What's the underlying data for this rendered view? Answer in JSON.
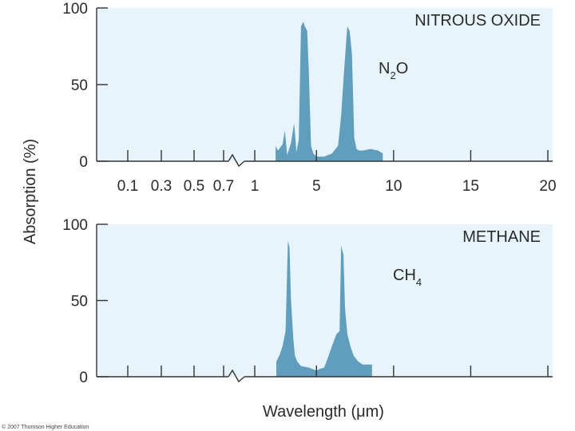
{
  "figure": {
    "ylabel": "Absorption (%)",
    "xlabel": "Wavelength (μm)",
    "copyright": "© 2007 Thomson Higher Education",
    "colors": {
      "panel_bg": "#e8f4fc",
      "fill": "#5f9fbd",
      "axis": "#333333"
    }
  },
  "chart_data": [
    {
      "type": "area",
      "title": "NITROUS OXIDE",
      "annotation": {
        "main": "N",
        "sub": "2",
        "rest": "O"
      },
      "ylim": [
        0,
        100
      ],
      "yticks": [
        0,
        50,
        100
      ],
      "xtick_labels": [
        "0.1",
        "0.3",
        "0.5",
        "0.7",
        "1",
        "5",
        "10",
        "15",
        "20"
      ],
      "x_axis_note": "broken axis between 0.7 and 1; linear scale from 1 to 20",
      "series": [
        {
          "x": [
            2.35,
            2.5,
            2.8,
            2.95,
            3.1,
            3.35,
            3.55,
            3.7,
            3.85,
            4.0,
            4.15,
            4.25,
            4.4,
            4.5,
            4.65,
            4.8,
            5.0,
            5.5,
            6.0,
            6.4,
            6.6,
            6.8,
            7.0,
            7.15,
            7.3,
            7.45,
            7.6,
            7.75,
            8.0,
            8.5,
            9.0,
            9.3,
            9.3
          ],
          "y": [
            10,
            7,
            11,
            20,
            4,
            12,
            25,
            6,
            14,
            88,
            91,
            88,
            85,
            60,
            10,
            5,
            3,
            3,
            5,
            10,
            30,
            60,
            88,
            85,
            70,
            15,
            8,
            7,
            7,
            8,
            7,
            5,
            0
          ]
        }
      ]
    },
    {
      "type": "area",
      "title": "METHANE",
      "annotation": {
        "main": "CH",
        "sub": "4",
        "rest": ""
      },
      "ylim": [
        0,
        100
      ],
      "yticks": [
        0,
        50,
        100
      ],
      "xtick_labels": [
        "0.1",
        "0.3",
        "0.5",
        "0.7",
        "1",
        "5",
        "10",
        "15",
        "20"
      ],
      "x_axis_note": "broken axis between 0.7 and 1; linear scale from 1 to 20",
      "series": [
        {
          "x": [
            2.4,
            2.6,
            2.8,
            3.0,
            3.15,
            3.25,
            3.35,
            3.5,
            3.6,
            3.75,
            4.0,
            4.5,
            5.0,
            5.2,
            5.5,
            5.8,
            6.0,
            6.3,
            6.5,
            6.6,
            6.75,
            6.85,
            7.0,
            7.2,
            7.4,
            7.7,
            8.0,
            8.6,
            8.6
          ],
          "y": [
            10,
            14,
            20,
            30,
            89,
            85,
            50,
            25,
            14,
            10,
            7,
            6,
            4,
            5,
            6,
            14,
            20,
            28,
            30,
            86,
            80,
            45,
            28,
            20,
            14,
            10,
            8,
            8,
            0
          ]
        }
      ]
    }
  ]
}
